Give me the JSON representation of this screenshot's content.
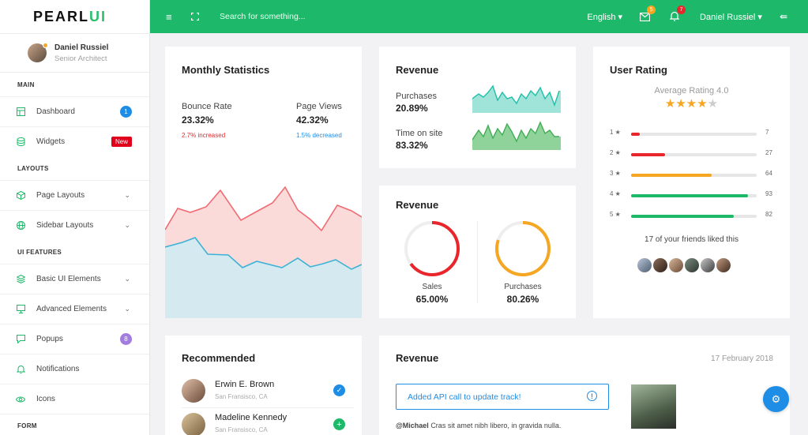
{
  "sidebar": {
    "brand_a": "PEARL",
    "brand_b": "UI",
    "profile": {
      "name": "Daniel Russiel",
      "role": "Senior Architect"
    },
    "sections": [
      "MAIN",
      "LAYOUTS",
      "UI FEATURES",
      "FORM"
    ],
    "items": [
      {
        "label": "Dashboard",
        "badge": "1"
      },
      {
        "label": "Widgets",
        "badge": "New"
      },
      {
        "label": "Page Layouts"
      },
      {
        "label": "Sidebar Layouts"
      },
      {
        "label": "Basic UI Elements"
      },
      {
        "label": "Advanced Elements"
      },
      {
        "label": "Popups",
        "badge": "8"
      },
      {
        "label": "Notifications"
      },
      {
        "label": "Icons"
      }
    ]
  },
  "topbar": {
    "search_placeholder": "Search for something...",
    "language": "English",
    "mail_count": "5",
    "notif_count": "7",
    "user": "Daniel Russiel"
  },
  "monthly": {
    "title": "Monthly Statistics",
    "bounce_label": "Bounce Rate",
    "bounce_value": "23.32%",
    "bounce_note": "2.7% increased",
    "views_label": "Page Views",
    "views_value": "42.32%",
    "views_note": "1.5% decreased"
  },
  "revenue_small": {
    "title": "Revenue",
    "purchases_label": "Purchases",
    "purchases_value": "20.89%",
    "time_label": "Time on site",
    "time_value": "83.32%"
  },
  "revenue_donut": {
    "title": "Revenue",
    "sales_label": "Sales",
    "sales_value": "65.00%",
    "sales_pct": 65,
    "purchases_label": "Purchases",
    "purchases_value": "80.26%",
    "purchases_pct": 80.26
  },
  "rating": {
    "title": "User Rating",
    "average": "Average Rating 4.0",
    "stars": 4,
    "rows": [
      {
        "label": "1 ★",
        "count": "7",
        "pct": 7
      },
      {
        "label": "2 ★",
        "count": "27",
        "pct": 27
      },
      {
        "label": "3 ★",
        "count": "64",
        "pct": 64
      },
      {
        "label": "4 ★",
        "count": "93",
        "pct": 93
      },
      {
        "label": "5 ★",
        "count": "82",
        "pct": 82
      }
    ],
    "friends": "17 of your friends liked this"
  },
  "recommended": {
    "title": "Recommended",
    "people": [
      {
        "name": "Erwin E. Brown",
        "location": "San Fransisco, CA"
      },
      {
        "name": "Madeline Kennedy",
        "location": "San Fransisco, CA"
      }
    ]
  },
  "revenue_feed": {
    "title": "Revenue",
    "date": "17 February 2018",
    "alert": "Added API call to update track!",
    "mention": "@Michael",
    "text": "Cras sit amet nibh libero, in gravida nulla."
  },
  "colors": {
    "green": "#1db86a",
    "red": "#e8262b",
    "orange": "#f5a623",
    "blue": "#1e8de6",
    "purple": "#a27de0"
  }
}
